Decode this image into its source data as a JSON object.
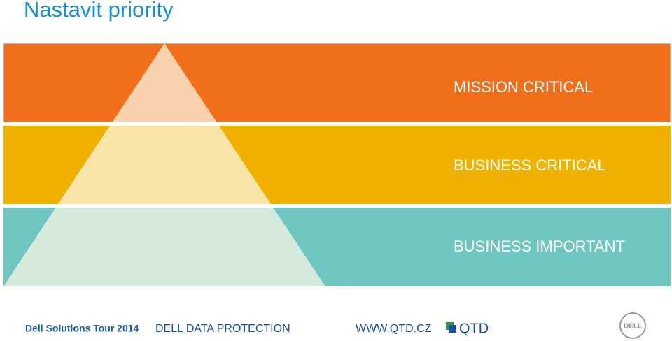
{
  "header": {
    "title": "Nastavit priority"
  },
  "tiers": [
    {
      "label": "MISSION CRITICAL"
    },
    {
      "label": "BUSINESS CRITICAL"
    },
    {
      "label": "BUSINESS IMPORTANT"
    }
  ],
  "footer": {
    "event": "Dell Solutions Tour 2014",
    "product": "DELL DATA PROTECTION",
    "website": "WWW.QTD.CZ",
    "partner_logo": "QTD",
    "brand_logo": "DELL"
  }
}
